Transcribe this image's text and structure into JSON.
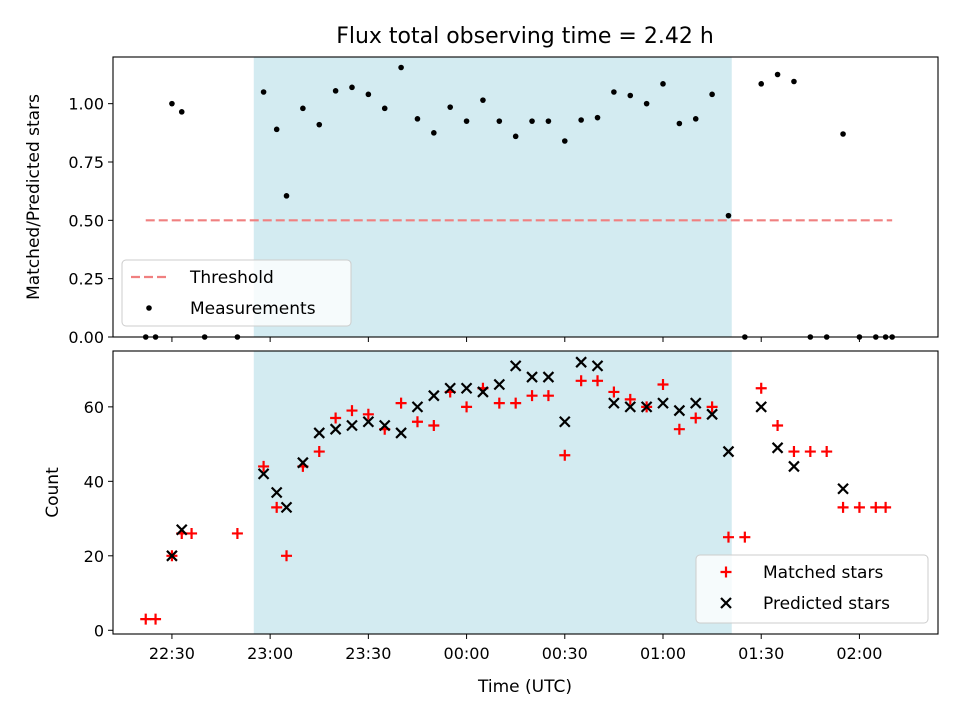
{
  "figure": {
    "title": "Flux total observing time = 2.42 h",
    "xlabel": "Time (UTC)",
    "x_tick_labels": [
      "22:30",
      "23:00",
      "23:30",
      "00:00",
      "00:30",
      "01:00",
      "01:30",
      "02:00"
    ]
  },
  "colors": {
    "shade": "#d3ebf1",
    "threshold": "#f08080",
    "measurements": "#000000",
    "matched": "#ff0000",
    "predicted": "#000000"
  },
  "chart_data": [
    {
      "type": "scatter",
      "panel": "top",
      "ylabel": "Matched/Predicted stars",
      "xlim": [
        "22:12",
        "02:24"
      ],
      "ylim": [
        0,
        1.2
      ],
      "y_tick_labels": [
        "0.00",
        "0.25",
        "0.50",
        "0.75",
        "1.00"
      ],
      "y_ticks": [
        0,
        0.25,
        0.5,
        0.75,
        1.0
      ],
      "shaded_span": [
        "22:55",
        "01:21"
      ],
      "threshold": {
        "name": "Threshold",
        "y": 0.5,
        "x_range": [
          "22:22",
          "02:10"
        ],
        "style": "dashed"
      },
      "legend": {
        "placement": "lower-left",
        "entries": [
          "Threshold",
          "Measurements"
        ]
      },
      "series": [
        {
          "name": "Measurements",
          "points": [
            [
              "22:22",
              0.0
            ],
            [
              "22:25",
              0.0
            ],
            [
              "22:30",
              1.0
            ],
            [
              "22:33",
              0.965
            ],
            [
              "22:40",
              0.0
            ],
            [
              "22:50",
              0.0
            ],
            [
              "22:58",
              1.05
            ],
            [
              "23:02",
              0.89
            ],
            [
              "23:05",
              0.605
            ],
            [
              "23:10",
              0.98
            ],
            [
              "23:15",
              0.91
            ],
            [
              "23:20",
              1.055
            ],
            [
              "23:25",
              1.07
            ],
            [
              "23:30",
              1.04
            ],
            [
              "23:35",
              0.98
            ],
            [
              "23:40",
              1.155
            ],
            [
              "23:45",
              0.935
            ],
            [
              "23:50",
              0.875
            ],
            [
              "23:55",
              0.985
            ],
            [
              "00:00",
              0.925
            ],
            [
              "00:05",
              1.015
            ],
            [
              "00:10",
              0.925
            ],
            [
              "00:15",
              0.86
            ],
            [
              "00:20",
              0.925
            ],
            [
              "00:25",
              0.925
            ],
            [
              "00:30",
              0.84
            ],
            [
              "00:35",
              0.93
            ],
            [
              "00:40",
              0.94
            ],
            [
              "00:45",
              1.05
            ],
            [
              "00:50",
              1.035
            ],
            [
              "00:55",
              1.0
            ],
            [
              "01:00",
              1.085
            ],
            [
              "01:05",
              0.915
            ],
            [
              "01:10",
              0.935
            ],
            [
              "01:15",
              1.04
            ],
            [
              "01:20",
              0.52
            ],
            [
              "01:25",
              0.0
            ],
            [
              "01:30",
              1.085
            ],
            [
              "01:35",
              1.125
            ],
            [
              "01:40",
              1.095
            ],
            [
              "01:45",
              0.0
            ],
            [
              "01:50",
              0.0
            ],
            [
              "01:55",
              0.87
            ],
            [
              "02:00",
              0.0
            ],
            [
              "02:05",
              0.0
            ],
            [
              "02:08",
              0.0
            ],
            [
              "02:10",
              0.0
            ]
          ]
        }
      ]
    },
    {
      "type": "scatter",
      "panel": "bottom",
      "ylabel": "Count",
      "xlim": [
        "22:12",
        "02:24"
      ],
      "ylim": [
        -1,
        75
      ],
      "y_tick_labels": [
        "0",
        "20",
        "40",
        "60"
      ],
      "y_ticks": [
        0,
        20,
        40,
        60
      ],
      "shaded_span": [
        "22:55",
        "01:21"
      ],
      "legend": {
        "placement": "lower-right",
        "entries": [
          "Matched stars",
          "Predicted stars"
        ]
      },
      "series": [
        {
          "name": "Matched stars",
          "marker": "plus",
          "points": [
            [
              "22:22",
              3
            ],
            [
              "22:25",
              3
            ],
            [
              "22:30",
              20
            ],
            [
              "22:33",
              26
            ],
            [
              "22:36",
              26
            ],
            [
              "22:50",
              26
            ],
            [
              "22:58",
              44
            ],
            [
              "23:02",
              33
            ],
            [
              "23:05",
              20
            ],
            [
              "23:10",
              44
            ],
            [
              "23:15",
              48
            ],
            [
              "23:20",
              57
            ],
            [
              "23:25",
              59
            ],
            [
              "23:30",
              58
            ],
            [
              "23:35",
              54
            ],
            [
              "23:40",
              61
            ],
            [
              "23:45",
              56
            ],
            [
              "23:50",
              55
            ],
            [
              "23:55",
              64
            ],
            [
              "00:00",
              60
            ],
            [
              "00:05",
              65
            ],
            [
              "00:10",
              61
            ],
            [
              "00:15",
              61
            ],
            [
              "00:20",
              63
            ],
            [
              "00:25",
              63
            ],
            [
              "00:30",
              47
            ],
            [
              "00:35",
              67
            ],
            [
              "00:40",
              67
            ],
            [
              "00:45",
              64
            ],
            [
              "00:50",
              62
            ],
            [
              "00:55",
              60
            ],
            [
              "01:00",
              66
            ],
            [
              "01:05",
              54
            ],
            [
              "01:10",
              57
            ],
            [
              "01:15",
              60
            ],
            [
              "01:20",
              25
            ],
            [
              "01:25",
              25
            ],
            [
              "01:30",
              65
            ],
            [
              "01:35",
              55
            ],
            [
              "01:40",
              48
            ],
            [
              "01:45",
              48
            ],
            [
              "01:50",
              48
            ],
            [
              "01:55",
              33
            ],
            [
              "02:00",
              33
            ],
            [
              "02:05",
              33
            ],
            [
              "02:08",
              33
            ]
          ]
        },
        {
          "name": "Predicted stars",
          "marker": "x",
          "points": [
            [
              "22:30",
              20
            ],
            [
              "22:33",
              27
            ],
            [
              "22:58",
              42
            ],
            [
              "23:02",
              37
            ],
            [
              "23:05",
              33
            ],
            [
              "23:10",
              45
            ],
            [
              "23:15",
              53
            ],
            [
              "23:20",
              54
            ],
            [
              "23:25",
              55
            ],
            [
              "23:30",
              56
            ],
            [
              "23:35",
              55
            ],
            [
              "23:40",
              53
            ],
            [
              "23:45",
              60
            ],
            [
              "23:50",
              63
            ],
            [
              "23:55",
              65
            ],
            [
              "00:00",
              65
            ],
            [
              "00:05",
              64
            ],
            [
              "00:10",
              66
            ],
            [
              "00:15",
              71
            ],
            [
              "00:20",
              68
            ],
            [
              "00:25",
              68
            ],
            [
              "00:30",
              56
            ],
            [
              "00:35",
              72
            ],
            [
              "00:40",
              71
            ],
            [
              "00:45",
              61
            ],
            [
              "00:50",
              60
            ],
            [
              "00:55",
              60
            ],
            [
              "01:00",
              61
            ],
            [
              "01:05",
              59
            ],
            [
              "01:10",
              61
            ],
            [
              "01:15",
              58
            ],
            [
              "01:20",
              48
            ],
            [
              "01:30",
              60
            ],
            [
              "01:35",
              49
            ],
            [
              "01:40",
              44
            ],
            [
              "01:55",
              38
            ]
          ]
        }
      ]
    }
  ]
}
